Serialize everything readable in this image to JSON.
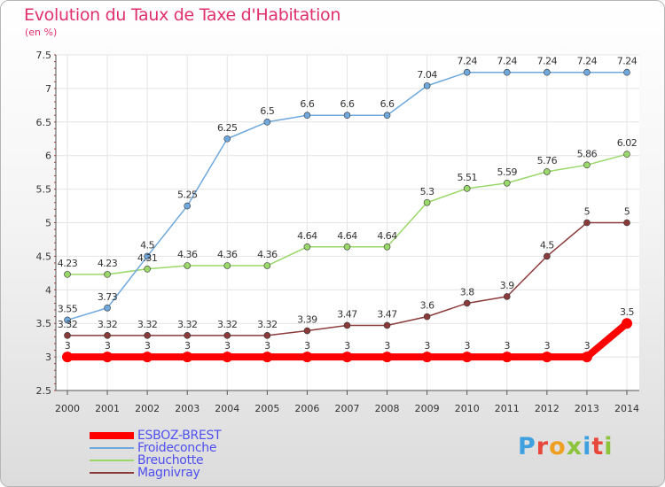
{
  "title": "Evolution du Taux de Taxe d'Habitation",
  "subtitle": "(en %)",
  "logo": {
    "text": "Proxiti",
    "colors": [
      "#3fa0e0",
      "#e8483c",
      "#f0a020",
      "#8cc43c",
      "#3fa0e0",
      "#e8483c",
      "#8cc43c"
    ]
  },
  "chart_data": {
    "type": "line",
    "x": [
      2000,
      2001,
      2002,
      2003,
      2004,
      2005,
      2006,
      2007,
      2008,
      2009,
      2010,
      2011,
      2012,
      2013,
      2014
    ],
    "ylim": [
      2.5,
      7.5
    ],
    "yticks": [
      "2.5",
      "3",
      "3.5",
      "4",
      "4.5",
      "5",
      "5.5",
      "6",
      "6.5",
      "7",
      "7.5"
    ],
    "legend_position": "bottom-left",
    "series": [
      {
        "name": "ESBOZ-BREST",
        "color": "#ff0000",
        "values": [
          3,
          3,
          3,
          3,
          3,
          3,
          3,
          3,
          3,
          3,
          3,
          3,
          3,
          3,
          3.5
        ],
        "labels": [
          "3",
          "3",
          "3",
          "3",
          "3",
          "3",
          "3",
          "3",
          "3",
          "3",
          "3",
          "3",
          "3",
          "3",
          "3.5"
        ]
      },
      {
        "name": "Froideconche",
        "color": "#6fa8dc",
        "values": [
          3.55,
          3.73,
          4.5,
          5.25,
          6.25,
          6.5,
          6.6,
          6.6,
          6.6,
          7.04,
          7.24,
          7.24,
          7.24,
          7.24,
          7.24
        ],
        "labels": [
          "3.55",
          "3.73",
          "4.5",
          "5.25",
          "6.25",
          "6.5",
          "6.6",
          "6.6",
          "6.6",
          "7.04",
          "7.24",
          "7.24",
          "7.24",
          "7.24",
          "7.24"
        ]
      },
      {
        "name": "Breuchotte",
        "color": "#9ad86a",
        "values": [
          4.23,
          4.23,
          4.31,
          4.36,
          4.36,
          4.36,
          4.64,
          4.64,
          4.64,
          5.3,
          5.51,
          5.59,
          5.76,
          5.86,
          6.02
        ],
        "labels": [
          "4.23",
          "4.23",
          "4.31",
          "4.36",
          "4.36",
          "4.36",
          "4.64",
          "4.64",
          "4.64",
          "5.3",
          "5.51",
          "5.59",
          "5.76",
          "5.86",
          "6.02"
        ]
      },
      {
        "name": "Magnivray",
        "color": "#8b3a3a",
        "values": [
          3.32,
          3.32,
          3.32,
          3.32,
          3.32,
          3.32,
          3.39,
          3.47,
          3.47,
          3.6,
          3.8,
          3.9,
          4.5,
          5,
          5
        ],
        "labels": [
          "3.32",
          "3.32",
          "3.32",
          "3.32",
          "3.32",
          "3.32",
          "3.39",
          "3.47",
          "3.47",
          "3.6",
          "3.8",
          "3.9",
          "4.5",
          "5",
          "5"
        ]
      }
    ]
  }
}
